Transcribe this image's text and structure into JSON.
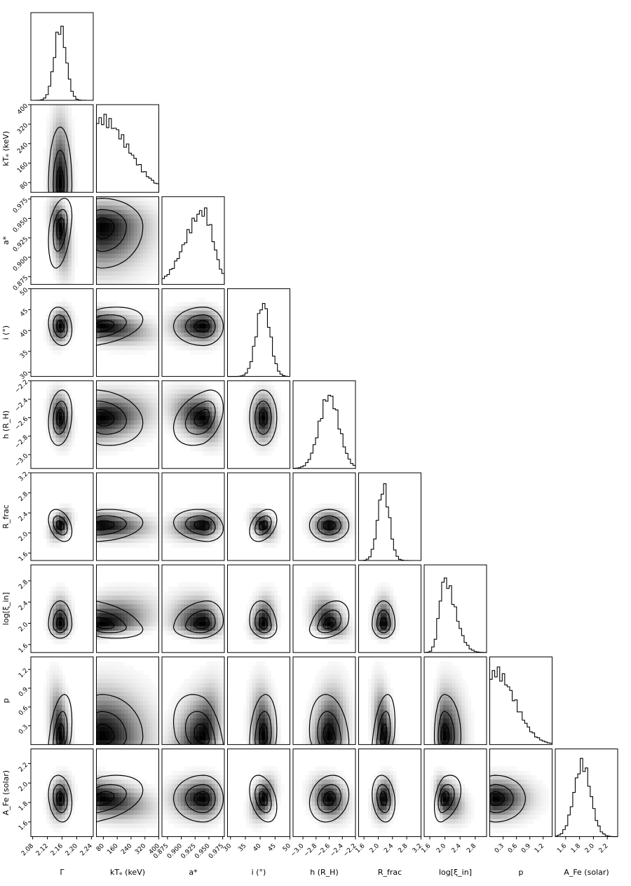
{
  "chart_data": {
    "type": "corner",
    "parameters": [
      {
        "key": "gamma",
        "label": "Γ",
        "range": [
          2.075,
          2.245
        ],
        "ticks": [
          "2.08",
          "2.12",
          "2.16",
          "2.20",
          "2.24"
        ],
        "tick_values": [
          2.08,
          2.12,
          2.16,
          2.2,
          2.24
        ],
        "mode": 2.155,
        "sigma": 0.016
      },
      {
        "key": "kTe",
        "label": "kTₑ (keV)",
        "range": [
          40,
          400
        ],
        "ticks": [
          "80",
          "160",
          "240",
          "320",
          "400"
        ],
        "tick_values": [
          80,
          160,
          240,
          320,
          400
        ],
        "mode": 70,
        "sigma": 70,
        "skew": "right"
      },
      {
        "key": "a",
        "label": "a*",
        "range": [
          0.865,
          0.978
        ],
        "ticks": [
          "0.875",
          "0.900",
          "0.925",
          "0.950",
          "0.975"
        ],
        "tick_values": [
          0.875,
          0.9,
          0.925,
          0.95,
          0.975
        ],
        "mode": 0.94,
        "sigma": 0.018,
        "skew": "left"
      },
      {
        "key": "i",
        "label": "i (°)",
        "range": [
          29,
          50
        ],
        "ticks": [
          "30",
          "35",
          "40",
          "45",
          "50"
        ],
        "tick_values": [
          30,
          35,
          40,
          45,
          50
        ],
        "mode": 41,
        "sigma": 2.3
      },
      {
        "key": "h",
        "label": "h (R_H)",
        "range": [
          -3.15,
          -2.2
        ],
        "ticks": [
          "−3.0",
          "−2.8",
          "−2.6",
          "−2.4",
          "−2.2"
        ],
        "tick_values": [
          -3.0,
          -2.8,
          -2.6,
          -2.4,
          -2.2
        ],
        "mode": -2.6,
        "sigma": 0.15
      },
      {
        "key": "Rfrac",
        "label": "R_frac",
        "range": [
          1.45,
          3.2
        ],
        "ticks": [
          "1.6",
          "2.0",
          "2.4",
          "2.8",
          "3.2"
        ],
        "tick_values": [
          1.6,
          2.0,
          2.4,
          2.8,
          3.2
        ],
        "mode": 2.15,
        "sigma": 0.16
      },
      {
        "key": "logxi",
        "label": "log[ξ_in]",
        "range": [
          1.45,
          3.1
        ],
        "ticks": [
          "1.6",
          "2.0",
          "2.4",
          "2.8"
        ],
        "tick_values": [
          1.6,
          2.0,
          2.4,
          2.8
        ],
        "mode": 1.98,
        "sigma": 0.13,
        "skew": "right"
      },
      {
        "key": "p",
        "label": "p",
        "range": [
          0.0,
          1.4
        ],
        "ticks": [
          "0.3",
          "0.6",
          "0.9",
          "1.2"
        ],
        "tick_values": [
          0.3,
          0.6,
          0.9,
          1.2
        ],
        "mode": 0.12,
        "sigma": 0.2,
        "skew": "right"
      },
      {
        "key": "AFe",
        "label": "A_Fe (solar)",
        "range": [
          1.45,
          2.35
        ],
        "ticks": [
          "1.6",
          "1.8",
          "2.0",
          "2.2"
        ],
        "tick_values": [
          1.6,
          1.8,
          2.0,
          2.2
        ],
        "mode": 1.84,
        "sigma": 0.12
      }
    ],
    "x_labels": [
      "Γ",
      "kT",
      "keV",
      "a",
      "i (°)",
      "h (R",
      "R",
      "log[ξ",
      "p",
      "A",
      "(solar)"
    ],
    "y_labels": [
      "kT",
      "e",
      "(keV)",
      "a",
      "i (°)",
      "h (R",
      "H",
      ")",
      "R",
      "frac",
      "log[ξ",
      "in",
      "]",
      "p",
      "A",
      "Fe",
      "(solar)"
    ],
    "contour_levels": 3,
    "colors": {
      "contour": "#000000",
      "density_max": "#000000",
      "background": "#ffffff"
    },
    "grid": false,
    "legend": "none"
  }
}
